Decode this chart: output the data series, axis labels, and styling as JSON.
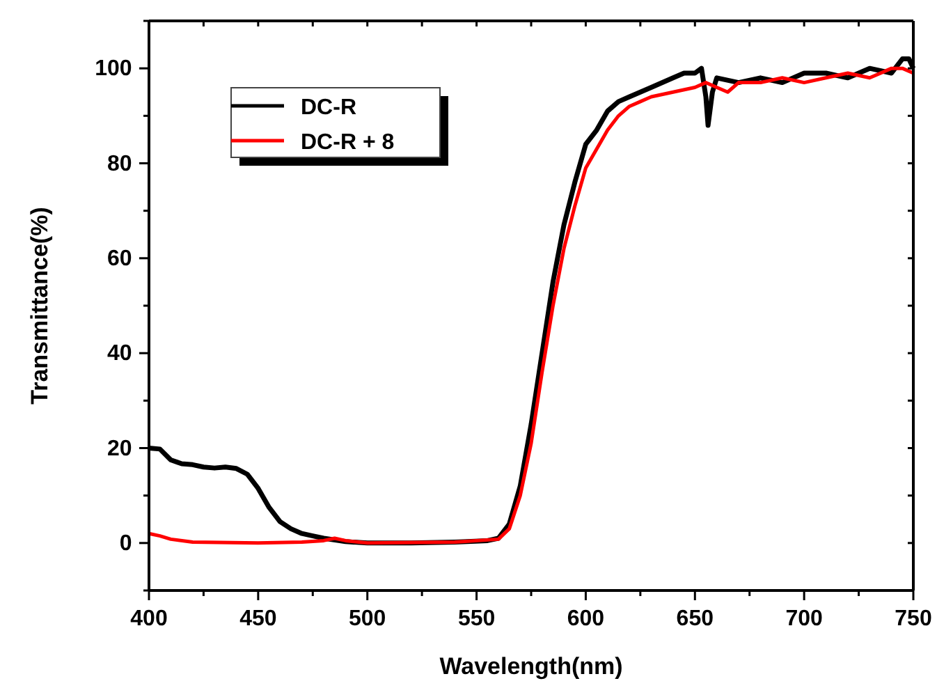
{
  "chart_data": {
    "type": "line",
    "xlabel": "Wavelength(nm)",
    "ylabel": "Transmittance(%)",
    "xlim": [
      400,
      750
    ],
    "ylim": [
      -10,
      110
    ],
    "xticks": [
      400,
      {
        "value": 425,
        "label": null
      },
      450,
      {
        "value": 475,
        "label": null
      },
      500,
      {
        "value": 525,
        "label": null
      },
      550,
      {
        "value": 575,
        "label": null
      },
      600,
      {
        "value": 625,
        "label": null
      },
      650,
      {
        "value": 675,
        "label": null
      },
      700,
      {
        "value": 725,
        "label": null
      },
      750
    ],
    "yticks": [
      {
        "value": -10,
        "label": null
      },
      0,
      {
        "value": 10,
        "label": null
      },
      20,
      {
        "value": 30,
        "label": null
      },
      40,
      {
        "value": 50,
        "label": null
      },
      60,
      {
        "value": 70,
        "label": null
      },
      80,
      {
        "value": 90,
        "label": null
      },
      100,
      {
        "value": 110,
        "label": null
      }
    ],
    "legend": "top left",
    "grid": false,
    "line_style": "solid",
    "marker": "none",
    "series": [
      {
        "name": "DC-R",
        "color": "#000000",
        "x": [
          400,
          405,
          410,
          415,
          420,
          425,
          430,
          435,
          440,
          445,
          450,
          455,
          460,
          465,
          470,
          475,
          480,
          490,
          500,
          520,
          540,
          555,
          560,
          565,
          570,
          575,
          580,
          585,
          590,
          595,
          600,
          605,
          610,
          615,
          620,
          625,
          630,
          640,
          645,
          650,
          653,
          655,
          656,
          658,
          660,
          670,
          680,
          690,
          700,
          710,
          720,
          730,
          740,
          745,
          748,
          750
        ],
        "values": [
          20,
          19.8,
          17.5,
          16.7,
          16.5,
          16,
          15.8,
          16,
          15.7,
          14.5,
          11.5,
          7.5,
          4.5,
          3,
          2,
          1.5,
          1,
          0.3,
          0,
          0,
          0.2,
          0.5,
          1,
          4,
          12,
          25,
          40,
          55,
          67,
          76,
          84,
          87,
          91,
          93,
          94,
          95,
          96,
          98,
          99,
          99,
          100,
          94,
          88,
          95,
          98,
          97,
          98,
          97,
          99,
          99,
          98,
          100,
          99,
          102,
          102,
          100
        ]
      },
      {
        "name": "DC-R + 8",
        "color": "#ff0000",
        "x": [
          400,
          405,
          410,
          420,
          450,
          470,
          480,
          485,
          490,
          500,
          540,
          560,
          565,
          570,
          575,
          580,
          585,
          590,
          595,
          600,
          605,
          610,
          615,
          620,
          625,
          630,
          640,
          650,
          655,
          660,
          665,
          670,
          680,
          690,
          700,
          710,
          720,
          730,
          740,
          745,
          750
        ],
        "values": [
          2,
          1.5,
          0.8,
          0.2,
          0,
          0.2,
          0.5,
          1,
          0.5,
          0,
          0.2,
          0.8,
          3,
          10,
          21,
          36,
          50,
          62,
          71,
          79,
          83,
          87,
          90,
          92,
          93,
          94,
          95,
          96,
          97,
          96,
          95,
          97,
          97,
          98,
          97,
          98,
          99,
          98,
          100,
          100,
          99
        ]
      }
    ]
  }
}
